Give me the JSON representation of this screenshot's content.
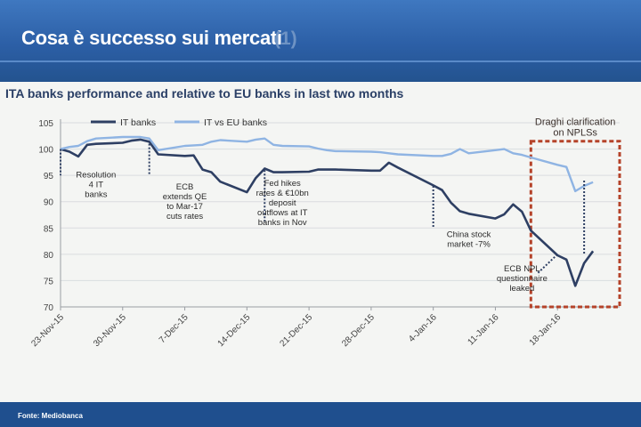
{
  "slide": {
    "title": "Cosa è successo sui mercati",
    "title_ghost": "(1)",
    "source": "Fonte: Mediobanca"
  },
  "chart_data": {
    "type": "line",
    "title": "ITA banks performance and relative to EU banks in last two months",
    "ylim": [
      70,
      105
    ],
    "yticks": [
      70,
      75,
      80,
      85,
      90,
      95,
      100,
      105
    ],
    "xlim": [
      "2015-11-23",
      "2016-01-25"
    ],
    "x_tick_labels": [
      "23-Nov-15",
      "30-Nov-15",
      "7-Dec-15",
      "14-Dec-15",
      "21-Dec-15",
      "28-Dec-15",
      "4-Jan-16",
      "11-Jan-16",
      "18-Jan-16"
    ],
    "x_tick_dates": [
      "2015-11-23",
      "2015-11-30",
      "2015-12-07",
      "2015-12-14",
      "2015-12-21",
      "2015-12-28",
      "2016-01-04",
      "2016-01-11",
      "2016-01-18"
    ],
    "grid": true,
    "legend": "top-left",
    "series": [
      {
        "name": "IT banks",
        "color": "#2e3f63",
        "points": [
          [
            "2015-11-23",
            100
          ],
          [
            "2015-11-24",
            99.5
          ],
          [
            "2015-11-25",
            98.6
          ],
          [
            "2015-11-26",
            100.8
          ],
          [
            "2015-11-27",
            101.0
          ],
          [
            "2015-11-30",
            101.2
          ],
          [
            "2015-12-01",
            101.6
          ],
          [
            "2015-12-02",
            101.8
          ],
          [
            "2015-12-03",
            101.4
          ],
          [
            "2015-12-04",
            99.0
          ],
          [
            "2015-12-07",
            98.7
          ],
          [
            "2015-12-08",
            98.8
          ],
          [
            "2015-12-09",
            96.1
          ],
          [
            "2015-12-10",
            95.6
          ],
          [
            "2015-12-11",
            93.8
          ],
          [
            "2015-12-14",
            91.8
          ],
          [
            "2015-12-15",
            94.5
          ],
          [
            "2015-12-16",
            96.3
          ],
          [
            "2015-12-17",
            95.6
          ],
          [
            "2015-12-18",
            95.6
          ],
          [
            "2015-12-21",
            95.7
          ],
          [
            "2015-12-22",
            96.1
          ],
          [
            "2015-12-23",
            96.1
          ],
          [
            "2015-12-24",
            96.1
          ],
          [
            "2015-12-28",
            95.9
          ],
          [
            "2015-12-29",
            95.9
          ],
          [
            "2015-12-30",
            97.4
          ],
          [
            "2015-12-31",
            96.5
          ],
          [
            "2016-01-04",
            93.1
          ],
          [
            "2016-01-05",
            92.2
          ],
          [
            "2016-01-06",
            89.8
          ],
          [
            "2016-01-07",
            88.2
          ],
          [
            "2016-01-08",
            87.7
          ],
          [
            "2016-01-11",
            86.8
          ],
          [
            "2016-01-12",
            87.6
          ],
          [
            "2016-01-13",
            89.5
          ],
          [
            "2016-01-14",
            88.1
          ],
          [
            "2016-01-15",
            84.5
          ],
          [
            "2016-01-18",
            79.8
          ],
          [
            "2016-01-19",
            79.0
          ],
          [
            "2016-01-20",
            74.0
          ],
          [
            "2016-01-21",
            78.3
          ],
          [
            "2016-01-22",
            80.6
          ]
        ]
      },
      {
        "name": "IT vs EU banks",
        "color": "#8fb4e3",
        "points": [
          [
            "2015-11-23",
            100
          ],
          [
            "2015-11-24",
            100.4
          ],
          [
            "2015-11-25",
            100.6
          ],
          [
            "2015-11-26",
            101.5
          ],
          [
            "2015-11-27",
            102.0
          ],
          [
            "2015-11-30",
            102.3
          ],
          [
            "2015-12-01",
            102.3
          ],
          [
            "2015-12-02",
            102.3
          ],
          [
            "2015-12-03",
            102.0
          ],
          [
            "2015-12-04",
            99.8
          ],
          [
            "2015-12-07",
            100.6
          ],
          [
            "2015-12-08",
            100.7
          ],
          [
            "2015-12-09",
            100.8
          ],
          [
            "2015-12-10",
            101.4
          ],
          [
            "2015-12-11",
            101.7
          ],
          [
            "2015-12-14",
            101.4
          ],
          [
            "2015-12-15",
            101.8
          ],
          [
            "2015-12-16",
            102.0
          ],
          [
            "2015-12-17",
            100.8
          ],
          [
            "2015-12-18",
            100.6
          ],
          [
            "2015-12-21",
            100.5
          ],
          [
            "2015-12-22",
            100.1
          ],
          [
            "2015-12-23",
            99.8
          ],
          [
            "2015-12-24",
            99.6
          ],
          [
            "2015-12-28",
            99.5
          ],
          [
            "2015-12-29",
            99.4
          ],
          [
            "2015-12-30",
            99.2
          ],
          [
            "2015-12-31",
            99.0
          ],
          [
            "2016-01-04",
            98.7
          ],
          [
            "2016-01-05",
            98.7
          ],
          [
            "2016-01-06",
            99.1
          ],
          [
            "2016-01-07",
            100.0
          ],
          [
            "2016-01-08",
            99.2
          ],
          [
            "2016-01-11",
            99.8
          ],
          [
            "2016-01-12",
            100.0
          ],
          [
            "2016-01-13",
            99.2
          ],
          [
            "2016-01-14",
            98.9
          ],
          [
            "2016-01-15",
            98.4
          ],
          [
            "2016-01-18",
            97.0
          ],
          [
            "2016-01-19",
            96.6
          ],
          [
            "2016-01-20",
            92.0
          ],
          [
            "2016-01-21",
            93.0
          ],
          [
            "2016-01-22",
            93.7
          ]
        ]
      }
    ],
    "annotations": [
      {
        "text": [
          "Resolution",
          "4 IT",
          "banks"
        ],
        "event_date": "2015-11-23",
        "label_date": "2015-11-27",
        "label_value": 94.6,
        "line_from": 100,
        "line_to": 95
      },
      {
        "text": [
          "ECB",
          "extends QE",
          "to Mar-17",
          "cuts rates"
        ],
        "event_date": "2015-12-03",
        "label_date": "2015-12-07",
        "label_value": 92.3,
        "line_from": 101,
        "line_to": 95
      },
      {
        "text": [
          "Fed hikes",
          "rates & €10bn",
          "deposit",
          "outflows at IT",
          "banks in Nov"
        ],
        "event_date": "2015-12-16",
        "label_date": "2015-12-18",
        "label_value": 93.0,
        "line_from": 96,
        "line_to": 86
      },
      {
        "text": [
          "China stock",
          "market -7%"
        ],
        "event_date": "2016-01-04",
        "label_date": "2016-01-08",
        "label_value": 83.3,
        "line_from": 93,
        "line_to": 85
      },
      {
        "text": [
          "ECB NPL",
          "questionnaire",
          "leaked"
        ],
        "event_date": "2016-01-18",
        "label_date": "2016-01-14",
        "label_value": 76.8,
        "line_from": 80,
        "line_to": 80
      },
      {
        "text": [
          "Draghi  clarification",
          "on NPLSs"
        ],
        "event_date": "2016-01-21",
        "label_date": "2016-01-20",
        "label_value": 104.6,
        "line_from": 94,
        "line_to": 80
      }
    ],
    "highlight_box": {
      "from": "2016-01-15",
      "to": "2016-01-25",
      "ymin": 70,
      "ymax": 101.5,
      "color": "#b5432a"
    }
  }
}
